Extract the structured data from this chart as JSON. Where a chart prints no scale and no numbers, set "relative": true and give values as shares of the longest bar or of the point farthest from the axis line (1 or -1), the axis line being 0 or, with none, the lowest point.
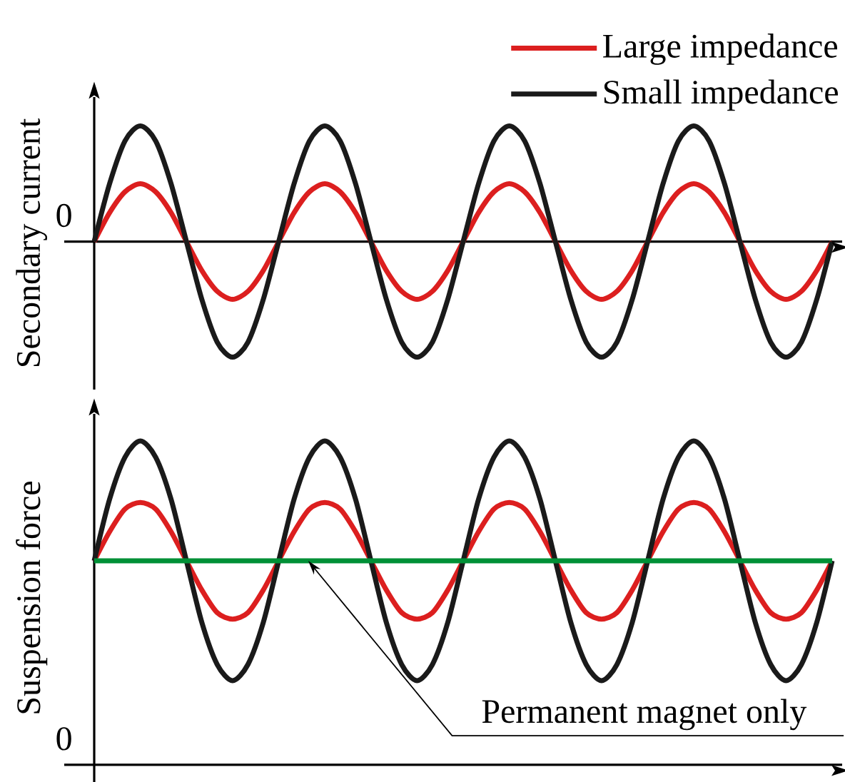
{
  "chart_data": [
    {
      "type": "line",
      "ylabel": "Secondary current",
      "relative": true,
      "legend": "top right",
      "categories": [
        null,
        null,
        null,
        null,
        null,
        null,
        null,
        null,
        null,
        null,
        null,
        null,
        null,
        null,
        null,
        null,
        null,
        null,
        null,
        null,
        null,
        null,
        null,
        null,
        null,
        null,
        null,
        null,
        null,
        null,
        null,
        null,
        null,
        null,
        null,
        null,
        null,
        null,
        null,
        null,
        null,
        null,
        null,
        null,
        null,
        null,
        null,
        null,
        null
      ],
      "series": [
        {
          "name": "Large impedance",
          "color": "#dc1f1f",
          "values": [
            0,
            0.25,
            0.43,
            0.5,
            0.43,
            0.25,
            0,
            -0.25,
            -0.43,
            -0.5,
            -0.43,
            -0.25,
            0,
            0.25,
            0.43,
            0.5,
            0.43,
            0.25,
            0,
            -0.25,
            -0.43,
            -0.5,
            -0.43,
            -0.25,
            0,
            0.25,
            0.43,
            0.5,
            0.43,
            0.25,
            0,
            -0.25,
            -0.43,
            -0.5,
            -0.43,
            -0.25,
            0,
            0.25,
            0.43,
            0.5,
            0.43,
            0.25,
            0,
            -0.25,
            -0.43,
            -0.5,
            -0.43,
            -0.25,
            0
          ]
        },
        {
          "name": "Small impedance",
          "color": "#1a1a1a",
          "values": [
            0,
            0.5,
            0.87,
            1,
            0.87,
            0.5,
            0,
            -0.5,
            -0.87,
            -1,
            -0.87,
            -0.5,
            0,
            0.5,
            0.87,
            1,
            0.87,
            0.5,
            0,
            -0.5,
            -0.87,
            -1,
            -0.87,
            -0.5,
            0,
            0.5,
            0.87,
            1,
            0.87,
            0.5,
            0,
            -0.5,
            -0.87,
            -1,
            -0.87,
            -0.5,
            0,
            0.5,
            0.87,
            1,
            0.87,
            0.5,
            0,
            -0.5,
            -0.87,
            -1,
            -0.87,
            -0.5,
            0
          ]
        }
      ],
      "annotations": [
        "0"
      ]
    },
    {
      "type": "line",
      "ylabel": "Suspension force",
      "relative": true,
      "categories": [
        null,
        null,
        null,
        null,
        null,
        null,
        null,
        null,
        null,
        null,
        null,
        null,
        null,
        null,
        null,
        null,
        null,
        null,
        null,
        null,
        null,
        null,
        null,
        null,
        null,
        null,
        null,
        null,
        null,
        null,
        null,
        null,
        null,
        null,
        null,
        null,
        null,
        null,
        null,
        null,
        null,
        null,
        null,
        null,
        null,
        null,
        null,
        null,
        null
      ],
      "series": [
        {
          "color": "#dc1f1f",
          "values": [
            0.63,
            0.72,
            0.79,
            0.81,
            0.79,
            0.72,
            0.63,
            0.54,
            0.47,
            0.45,
            0.47,
            0.54,
            0.63,
            0.72,
            0.79,
            0.81,
            0.79,
            0.72,
            0.63,
            0.54,
            0.47,
            0.45,
            0.47,
            0.54,
            0.63,
            0.72,
            0.79,
            0.81,
            0.79,
            0.72,
            0.63,
            0.54,
            0.47,
            0.45,
            0.47,
            0.54,
            0.63,
            0.72,
            0.79,
            0.81,
            0.79,
            0.72,
            0.63,
            0.54,
            0.47,
            0.45,
            0.47,
            0.54,
            0.63
          ]
        },
        {
          "color": "#1a1a1a",
          "values": [
            0.63,
            0.82,
            0.95,
            1,
            0.95,
            0.82,
            0.63,
            0.44,
            0.31,
            0.26,
            0.31,
            0.44,
            0.63,
            0.82,
            0.95,
            1,
            0.95,
            0.82,
            0.63,
            0.44,
            0.31,
            0.26,
            0.31,
            0.44,
            0.63,
            0.82,
            0.95,
            1,
            0.95,
            0.82,
            0.63,
            0.44,
            0.31,
            0.26,
            0.31,
            0.44,
            0.63,
            0.82,
            0.95,
            1,
            0.95,
            0.82,
            0.63,
            0.44,
            0.31,
            0.26,
            0.31,
            0.44,
            0.63
          ]
        },
        {
          "color": "#009036",
          "values": [
            0.63,
            0.63,
            0.63,
            0.63,
            0.63,
            0.63,
            0.63,
            0.63,
            0.63,
            0.63,
            0.63,
            0.63,
            0.63,
            0.63,
            0.63,
            0.63,
            0.63,
            0.63,
            0.63,
            0.63,
            0.63,
            0.63,
            0.63,
            0.63,
            0.63,
            0.63,
            0.63,
            0.63,
            0.63,
            0.63,
            0.63,
            0.63,
            0.63,
            0.63,
            0.63,
            0.63,
            0.63,
            0.63,
            0.63,
            0.63,
            0.63,
            0.63,
            0.63,
            0.63,
            0.63,
            0.63,
            0.63,
            0.63,
            0.63
          ]
        }
      ],
      "annotations": [
        "0",
        "Permanent magnet only"
      ]
    }
  ]
}
